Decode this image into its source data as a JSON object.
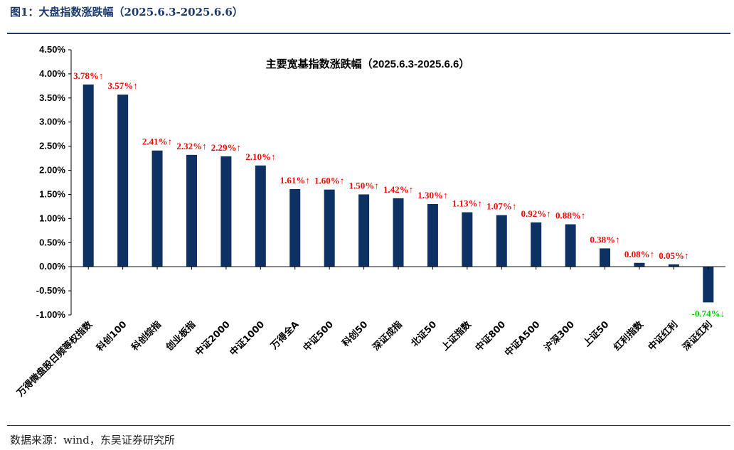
{
  "figure": {
    "title": "图1：大盘指数涨跌幅（2025.6.3-2025.6.6）",
    "source": "数据来源：wind，东吴证券研究所"
  },
  "colors": {
    "bar": "#0d3163",
    "up_label": "#ff0000",
    "down_label": "#00cc00"
  },
  "chart_data": {
    "type": "bar",
    "title": "主要宽基指数涨跌幅（2025.6.3-2025.6.6）",
    "xlabel": "",
    "ylabel": "",
    "ylim": [
      -1.0,
      4.5
    ],
    "yticks": [
      4.5,
      4.0,
      3.5,
      3.0,
      2.5,
      2.0,
      1.5,
      1.0,
      0.5,
      0.0,
      -0.5,
      -1.0
    ],
    "ytick_labels": [
      "4.50%",
      "4.00%",
      "3.50%",
      "3.00%",
      "2.50%",
      "2.00%",
      "1.50%",
      "1.00%",
      "0.50%",
      "0.00%",
      "-0.50%",
      "-1.00%"
    ],
    "grid": false,
    "categories": [
      "万得微盘股日频等权指数",
      "科创100",
      "科创综指",
      "创业板指",
      "中证2000",
      "中证1000",
      "万得全A",
      "中证500",
      "科创50",
      "深证成指",
      "北证50",
      "上证指数",
      "中证800",
      "中证A500",
      "沪深300",
      "上证50",
      "红利指数",
      "中证红利",
      "深证红利"
    ],
    "values": [
      3.78,
      3.57,
      2.41,
      2.32,
      2.29,
      2.1,
      1.61,
      1.6,
      1.5,
      1.42,
      1.3,
      1.13,
      1.07,
      0.92,
      0.88,
      0.38,
      0.08,
      0.05,
      -0.74
    ],
    "data_labels": [
      "3.78%↑",
      "3.57%↑",
      "2.41%↑",
      "2.32%↑",
      "2.29%↑",
      "2.10%↑",
      "1.61%↑",
      "1.60%↑",
      "1.50%↑",
      "1.42%↑",
      "1.30%↑",
      "1.13%↑",
      "1.07%↑",
      "0.92%↑",
      "0.88%↑",
      "0.38%↑",
      "0.08%↑",
      "0.05%↑",
      "-0.74%↓"
    ]
  }
}
